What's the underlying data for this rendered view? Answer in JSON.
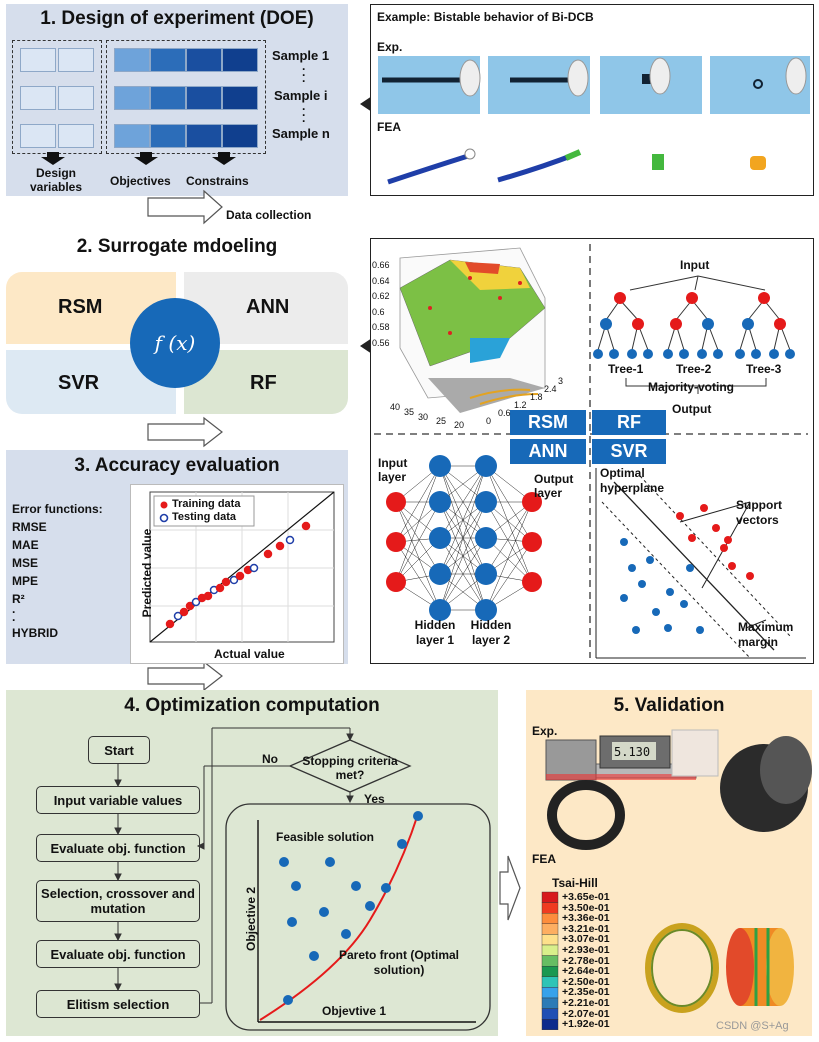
{
  "panel1": {
    "title": "1. Design of experiment (DOE)",
    "samples": [
      "Sample 1",
      "Sample i",
      "Sample n"
    ],
    "labels": {
      "design": "Design variables",
      "objectives": "Objectives",
      "constrains": "Constrains"
    },
    "colors": {
      "light": "#dbe6f4",
      "mid": "#6ea3da",
      "dark": "#103f8e"
    }
  },
  "example": {
    "title": "Example: Bistable behavior of Bi-DCB",
    "exp": "Exp.",
    "fea": "FEA"
  },
  "data_collection": "Data collection",
  "panel2": {
    "title": "2. Surrogate mdoeling",
    "quadrants": [
      "RSM",
      "ANN",
      "SVR",
      "RF"
    ],
    "function": "f (x)"
  },
  "surrogate_figure": {
    "surface_axis": {
      "z": [
        "0.66",
        "0.64",
        "0.62",
        "0.6",
        "0.58",
        "0.56"
      ],
      "x": [
        "40",
        "35",
        "30",
        "25",
        "20"
      ],
      "y": [
        "0",
        "0.6",
        "1.2",
        "1.8",
        "2.4",
        "3"
      ]
    },
    "rf": {
      "input": "Input",
      "trees": [
        "Tree-1",
        "Tree-2",
        "Tree-3"
      ],
      "voting": "Majority-voting",
      "output": "Output"
    },
    "tags": [
      "RSM",
      "RF",
      "ANN",
      "SVR"
    ],
    "ann": {
      "input": "Input layer",
      "output": "Output layer",
      "hidden1": "Hidden layer 1",
      "hidden2": "Hidden layer 2"
    },
    "svr": {
      "hyperplane": "Optimal hyperplane",
      "support": "Support vectors",
      "margin": "Maximum margin"
    }
  },
  "panel3": {
    "title": "3. Accuracy evaluation",
    "error_title": "Error functions:",
    "errors": [
      "RMSE",
      "MAE",
      "MSE",
      "MPE",
      "R²",
      "·",
      "·",
      "HYBRID"
    ],
    "legend": [
      "Training data",
      "Testing data"
    ],
    "xlabel": "Actual value",
    "ylabel": "Predicted value"
  },
  "panel4": {
    "title": "4. Optimization computation",
    "steps": [
      "Start",
      "Input variable values",
      "Evaluate obj. function",
      "Selection, crossover and mutation",
      "Evaluate obj. function",
      "Elitism selection"
    ],
    "decision": "Stopping criteria met?",
    "no": "No",
    "yes": "Yes",
    "feasible": "Feasible solution",
    "pareto": "Pareto front (Optimal solution)",
    "xlabel": "Objevtive 1",
    "ylabel": "Objective 2"
  },
  "panel5": {
    "title": "5. Validation",
    "exp": "Exp.",
    "fea": "FEA",
    "legend_title": "Tsai-Hill",
    "legend_values": [
      "+3.65e-01",
      "+3.50e-01",
      "+3.36e-01",
      "+3.21e-01",
      "+3.07e-01",
      "+2.93e-01",
      "+2.78e-01",
      "+2.64e-01",
      "+2.50e-01",
      "+2.35e-01",
      "+2.21e-01",
      "+2.07e-01",
      "+1.92e-01"
    ],
    "legend_colors": [
      "#d7191c",
      "#f03b20",
      "#fd8d3c",
      "#fdae61",
      "#fee08b",
      "#d9ef8b",
      "#66bd63",
      "#1a9850",
      "#2ec4b6",
      "#36a2eb",
      "#2c7bb6",
      "#1f4fb4",
      "#0d2b8c"
    ],
    "caliper_readout": "5.130"
  },
  "watermark": "CSDN @S+Ag"
}
